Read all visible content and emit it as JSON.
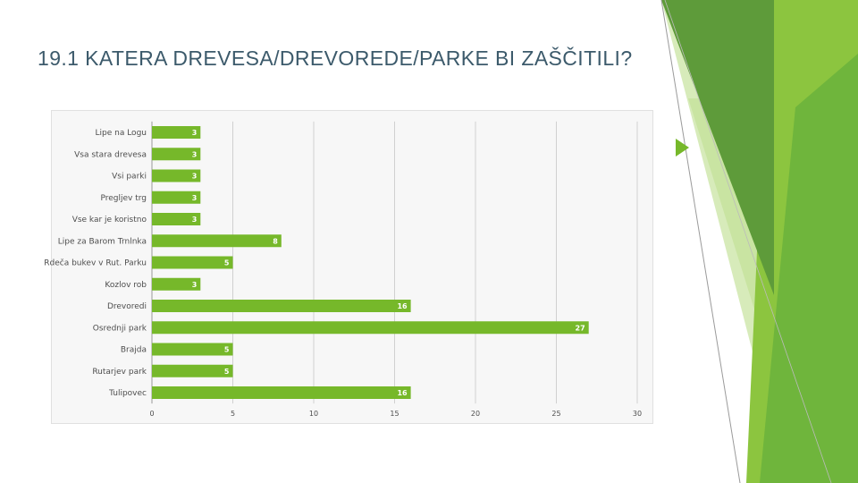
{
  "slide": {
    "title": "19.1 KATERA DREVESA/DREVOREDE/PARKE BI ZAŠČITILI?",
    "accent_colors": [
      "#76b82a",
      "#5a9e32",
      "#9ccc52",
      "#cfe6a6"
    ]
  },
  "chart_data": {
    "type": "bar",
    "orientation": "horizontal",
    "categories": [
      "Lipe na Logu",
      "Vsa stara drevesa",
      "Vsi parki",
      "Pregljev trg",
      "Vse kar je koristno",
      "Lipe za Barom Trnlnka",
      "Rdeča bukev v Rut. Parku",
      "Kozlov rob",
      "Drevoredi",
      "Osrednji park",
      "Brajda",
      "Rutarjev park",
      "Tulipovec"
    ],
    "values": [
      3,
      3,
      3,
      3,
      3,
      8,
      5,
      3,
      16,
      27,
      5,
      5,
      16
    ],
    "x_ticks": [
      0,
      5,
      10,
      15,
      20,
      25,
      30
    ],
    "xlim": [
      0,
      30
    ],
    "bar_color": "#76b82a",
    "grid": true,
    "legend": "none"
  }
}
